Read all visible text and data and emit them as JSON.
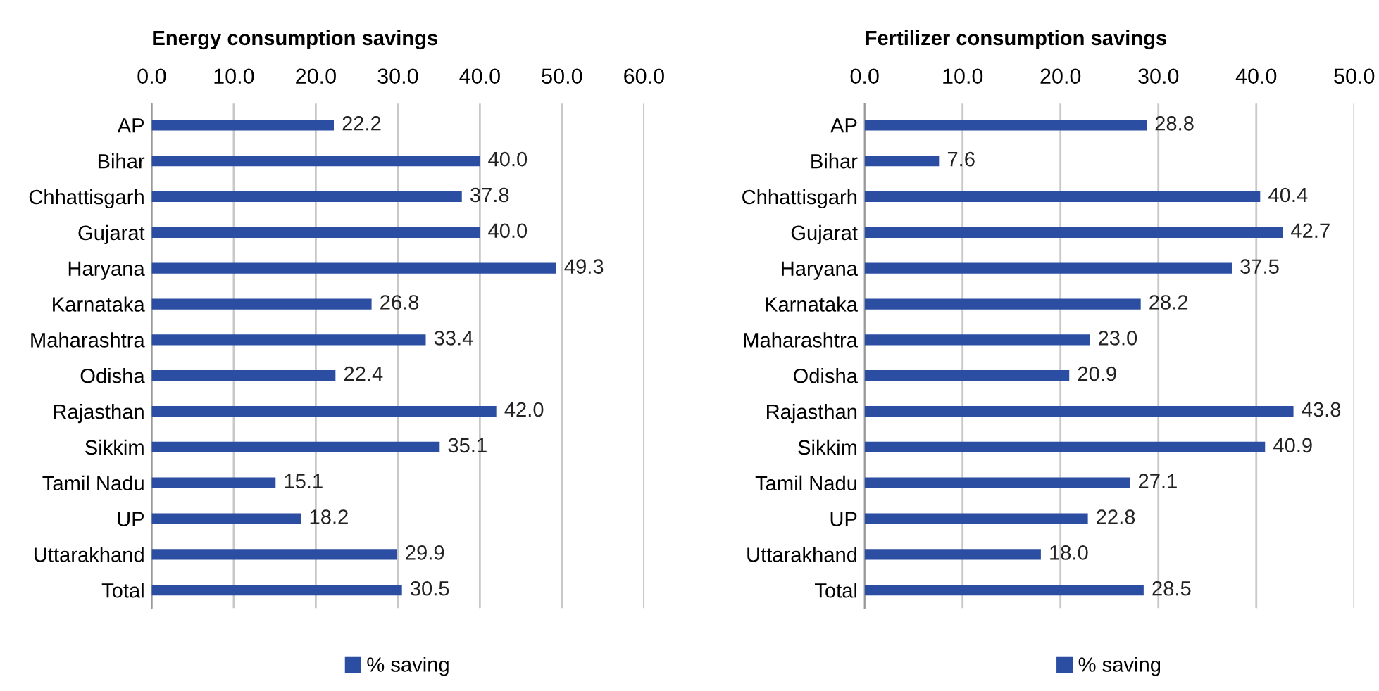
{
  "chart_data": [
    {
      "type": "bar",
      "orientation": "horizontal",
      "title": "Energy consumption savings",
      "categories": [
        "AP",
        "Bihar",
        "Chhattisgarh",
        "Gujarat",
        "Haryana",
        "Karnataka",
        "Maharashtra",
        "Odisha",
        "Rajasthan",
        "Sikkim",
        "Tamil Nadu",
        "UP",
        "Uttarakhand",
        "Total"
      ],
      "series": [
        {
          "name": "% saving",
          "color": "#2b4ea2",
          "values": [
            22.2,
            40.0,
            37.8,
            40.0,
            49.3,
            26.8,
            33.4,
            22.4,
            42.0,
            35.1,
            15.1,
            18.2,
            29.9,
            30.5
          ],
          "value_labels": [
            "22.2",
            "40.0",
            "37.8",
            "40.0",
            "49.3",
            "26.8",
            "33.4",
            "22.4",
            "42.0",
            "35.1",
            "15.1",
            "18.2",
            "29.9",
            "30.5"
          ]
        }
      ],
      "xlim": [
        0,
        60
      ],
      "xticks": [
        {
          "value": 0,
          "label": "0.0"
        },
        {
          "value": 10,
          "label": "10.0"
        },
        {
          "value": 20,
          "label": "20.0"
        },
        {
          "value": 30,
          "label": "30.0"
        },
        {
          "value": 40,
          "label": "40.0"
        },
        {
          "value": 50,
          "label": "50.0"
        },
        {
          "value": 60,
          "label": "60.0"
        }
      ],
      "grid": "x",
      "legend": "bottom"
    },
    {
      "type": "bar",
      "orientation": "horizontal",
      "title": "Fertilizer consumption savings",
      "categories": [
        "AP",
        "Bihar",
        "Chhattisgarh",
        "Gujarat",
        "Haryana",
        "Karnataka",
        "Maharashtra",
        "Odisha",
        "Rajasthan",
        "Sikkim",
        "Tamil Nadu",
        "UP",
        "Uttarakhand",
        "Total"
      ],
      "series": [
        {
          "name": "% saving",
          "color": "#2b4ea2",
          "values": [
            28.8,
            7.6,
            40.4,
            42.7,
            37.5,
            28.2,
            23.0,
            20.9,
            43.8,
            40.9,
            27.1,
            22.8,
            18.0,
            28.5
          ],
          "value_labels": [
            "28.8",
            "7.6",
            "40.4",
            "42.7",
            "37.5",
            "28.2",
            "23.0",
            "20.9",
            "43.8",
            "40.9",
            "27.1",
            "22.8",
            "18.0",
            "28.5"
          ]
        }
      ],
      "xlim": [
        0,
        50
      ],
      "xticks": [
        {
          "value": 0,
          "label": "0.0"
        },
        {
          "value": 10,
          "label": "10.0"
        },
        {
          "value": 20,
          "label": "20.0"
        },
        {
          "value": 30,
          "label": "30.0"
        },
        {
          "value": 40,
          "label": "40.0"
        },
        {
          "value": 50,
          "label": "50.0"
        }
      ],
      "grid": "x",
      "legend": "bottom"
    }
  ]
}
